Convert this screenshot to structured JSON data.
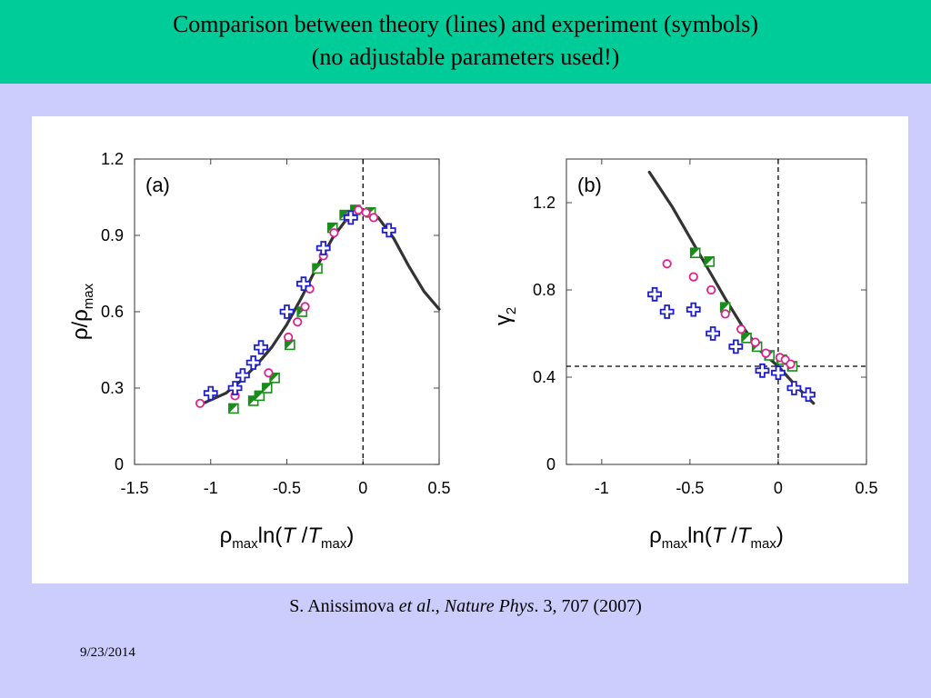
{
  "slide": {
    "title_line1": "Comparison between theory (lines) and experiment (symbols)",
    "title_line2": "(no adjustable parameters used!)",
    "citation": {
      "authors": "S. Anissimova ",
      "etal": "et al",
      "sep": ".,",
      "journal": "Nature Phys",
      "ref": ". 3, 707 (2007)"
    },
    "date": "9/23/2014"
  },
  "colors": {
    "title_bar": "#00cc99",
    "slide_bg": "#cccdfd",
    "theory_line": "#333333",
    "green_squares": "#1a8c1a",
    "magenta_circles": "#e0208f",
    "blue_crosses": "#1c1cd0"
  },
  "chart_data": [
    {
      "type": "scatter",
      "panel_label": "(a)",
      "title": "",
      "xlabel": "ρmaxln(T/Tmax)",
      "ylabel": "ρ/ρmax",
      "xlim": [
        -1.5,
        0.5
      ],
      "ylim": [
        0,
        1.2
      ],
      "xticks": [
        "-1.5",
        "-1",
        "-0.5",
        "0",
        "0.5"
      ],
      "yticks": [
        "0",
        "0.3",
        "0.6",
        "0.9",
        "1.2"
      ],
      "reference_lines": {
        "vertical_x": 0
      },
      "theory_line": {
        "x": [
          -1.05,
          -0.9,
          -0.8,
          -0.7,
          -0.6,
          -0.5,
          -0.4,
          -0.3,
          -0.2,
          -0.1,
          0.0,
          0.1,
          0.2,
          0.3,
          0.4,
          0.5
        ],
        "y": [
          0.24,
          0.28,
          0.33,
          0.39,
          0.46,
          0.55,
          0.66,
          0.78,
          0.89,
          0.97,
          1.0,
          0.97,
          0.89,
          0.78,
          0.68,
          0.61
        ]
      },
      "series": [
        {
          "marker": "half-filled square",
          "x": [
            -0.85,
            -0.72,
            -0.68,
            -0.63,
            -0.58,
            -0.48,
            -0.4,
            -0.3,
            -0.2,
            -0.12,
            -0.05,
            0.05
          ],
          "y": [
            0.22,
            0.25,
            0.27,
            0.3,
            0.34,
            0.47,
            0.6,
            0.77,
            0.93,
            0.98,
            1.0,
            0.99
          ]
        },
        {
          "marker": "open circle",
          "x": [
            -1.07,
            -0.84,
            -0.62,
            -0.49,
            -0.43,
            -0.38,
            -0.35,
            -0.26,
            -0.19,
            -0.1,
            -0.03,
            0.02,
            0.07
          ],
          "y": [
            0.24,
            0.27,
            0.36,
            0.5,
            0.56,
            0.62,
            0.69,
            0.82,
            0.91,
            0.97,
            1.0,
            0.99,
            0.97
          ]
        },
        {
          "marker": "open cross",
          "x": [
            -1.0,
            -0.84,
            -0.79,
            -0.72,
            -0.67,
            -0.5,
            -0.39,
            -0.26,
            -0.08,
            0.17
          ],
          "y": [
            0.28,
            0.3,
            0.35,
            0.4,
            0.46,
            0.6,
            0.71,
            0.85,
            0.97,
            0.92
          ]
        }
      ]
    },
    {
      "type": "scatter",
      "panel_label": "(b)",
      "title": "",
      "xlabel": "ρmaxln(T/Tmax)",
      "ylabel": "γ2",
      "xlim": [
        -1.2,
        0.5
      ],
      "ylim": [
        0,
        1.4
      ],
      "xticks": [
        "-1",
        "-0.5",
        "0",
        "0.5"
      ],
      "yticks": [
        "0",
        "0.4",
        "0.8",
        "1.2"
      ],
      "reference_lines": {
        "vertical_x": 0,
        "horizontal_y": 0.45
      },
      "theory_line": {
        "x": [
          -0.73,
          -0.6,
          -0.5,
          -0.4,
          -0.3,
          -0.2,
          -0.1,
          0.0,
          0.1,
          0.2
        ],
        "y": [
          1.34,
          1.18,
          1.04,
          0.9,
          0.76,
          0.63,
          0.52,
          0.45,
          0.36,
          0.28
        ]
      },
      "series": [
        {
          "marker": "half-filled square",
          "x": [
            -0.47,
            -0.39,
            -0.3,
            -0.18,
            -0.12,
            -0.05,
            0.02,
            0.08
          ],
          "y": [
            0.97,
            0.93,
            0.72,
            0.58,
            0.54,
            0.5,
            0.48,
            0.45
          ]
        },
        {
          "marker": "open circle",
          "x": [
            -0.63,
            -0.48,
            -0.38,
            -0.3,
            -0.21,
            -0.13,
            -0.07,
            0.01,
            0.04,
            0.07
          ],
          "y": [
            0.92,
            0.86,
            0.8,
            0.69,
            0.62,
            0.56,
            0.51,
            0.49,
            0.48,
            0.46
          ]
        },
        {
          "marker": "open cross",
          "x": [
            -0.7,
            -0.63,
            -0.48,
            -0.37,
            -0.24,
            -0.09,
            0.0,
            0.09,
            0.17
          ],
          "y": [
            0.78,
            0.7,
            0.71,
            0.6,
            0.54,
            0.43,
            0.42,
            0.35,
            0.32
          ]
        }
      ]
    }
  ]
}
